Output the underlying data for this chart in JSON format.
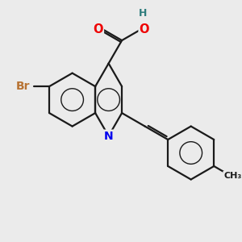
{
  "background_color": "#ebebeb",
  "bond_color": "#1a1a1a",
  "atom_colors": {
    "Br": "#b87333",
    "N": "#0000ee",
    "O": "#ee0000",
    "H": "#2e7d7d",
    "C": "#1a1a1a"
  },
  "bond_width": 1.6,
  "font_size": 9.5,
  "figsize": [
    3.0,
    3.0
  ],
  "dpi": 100
}
